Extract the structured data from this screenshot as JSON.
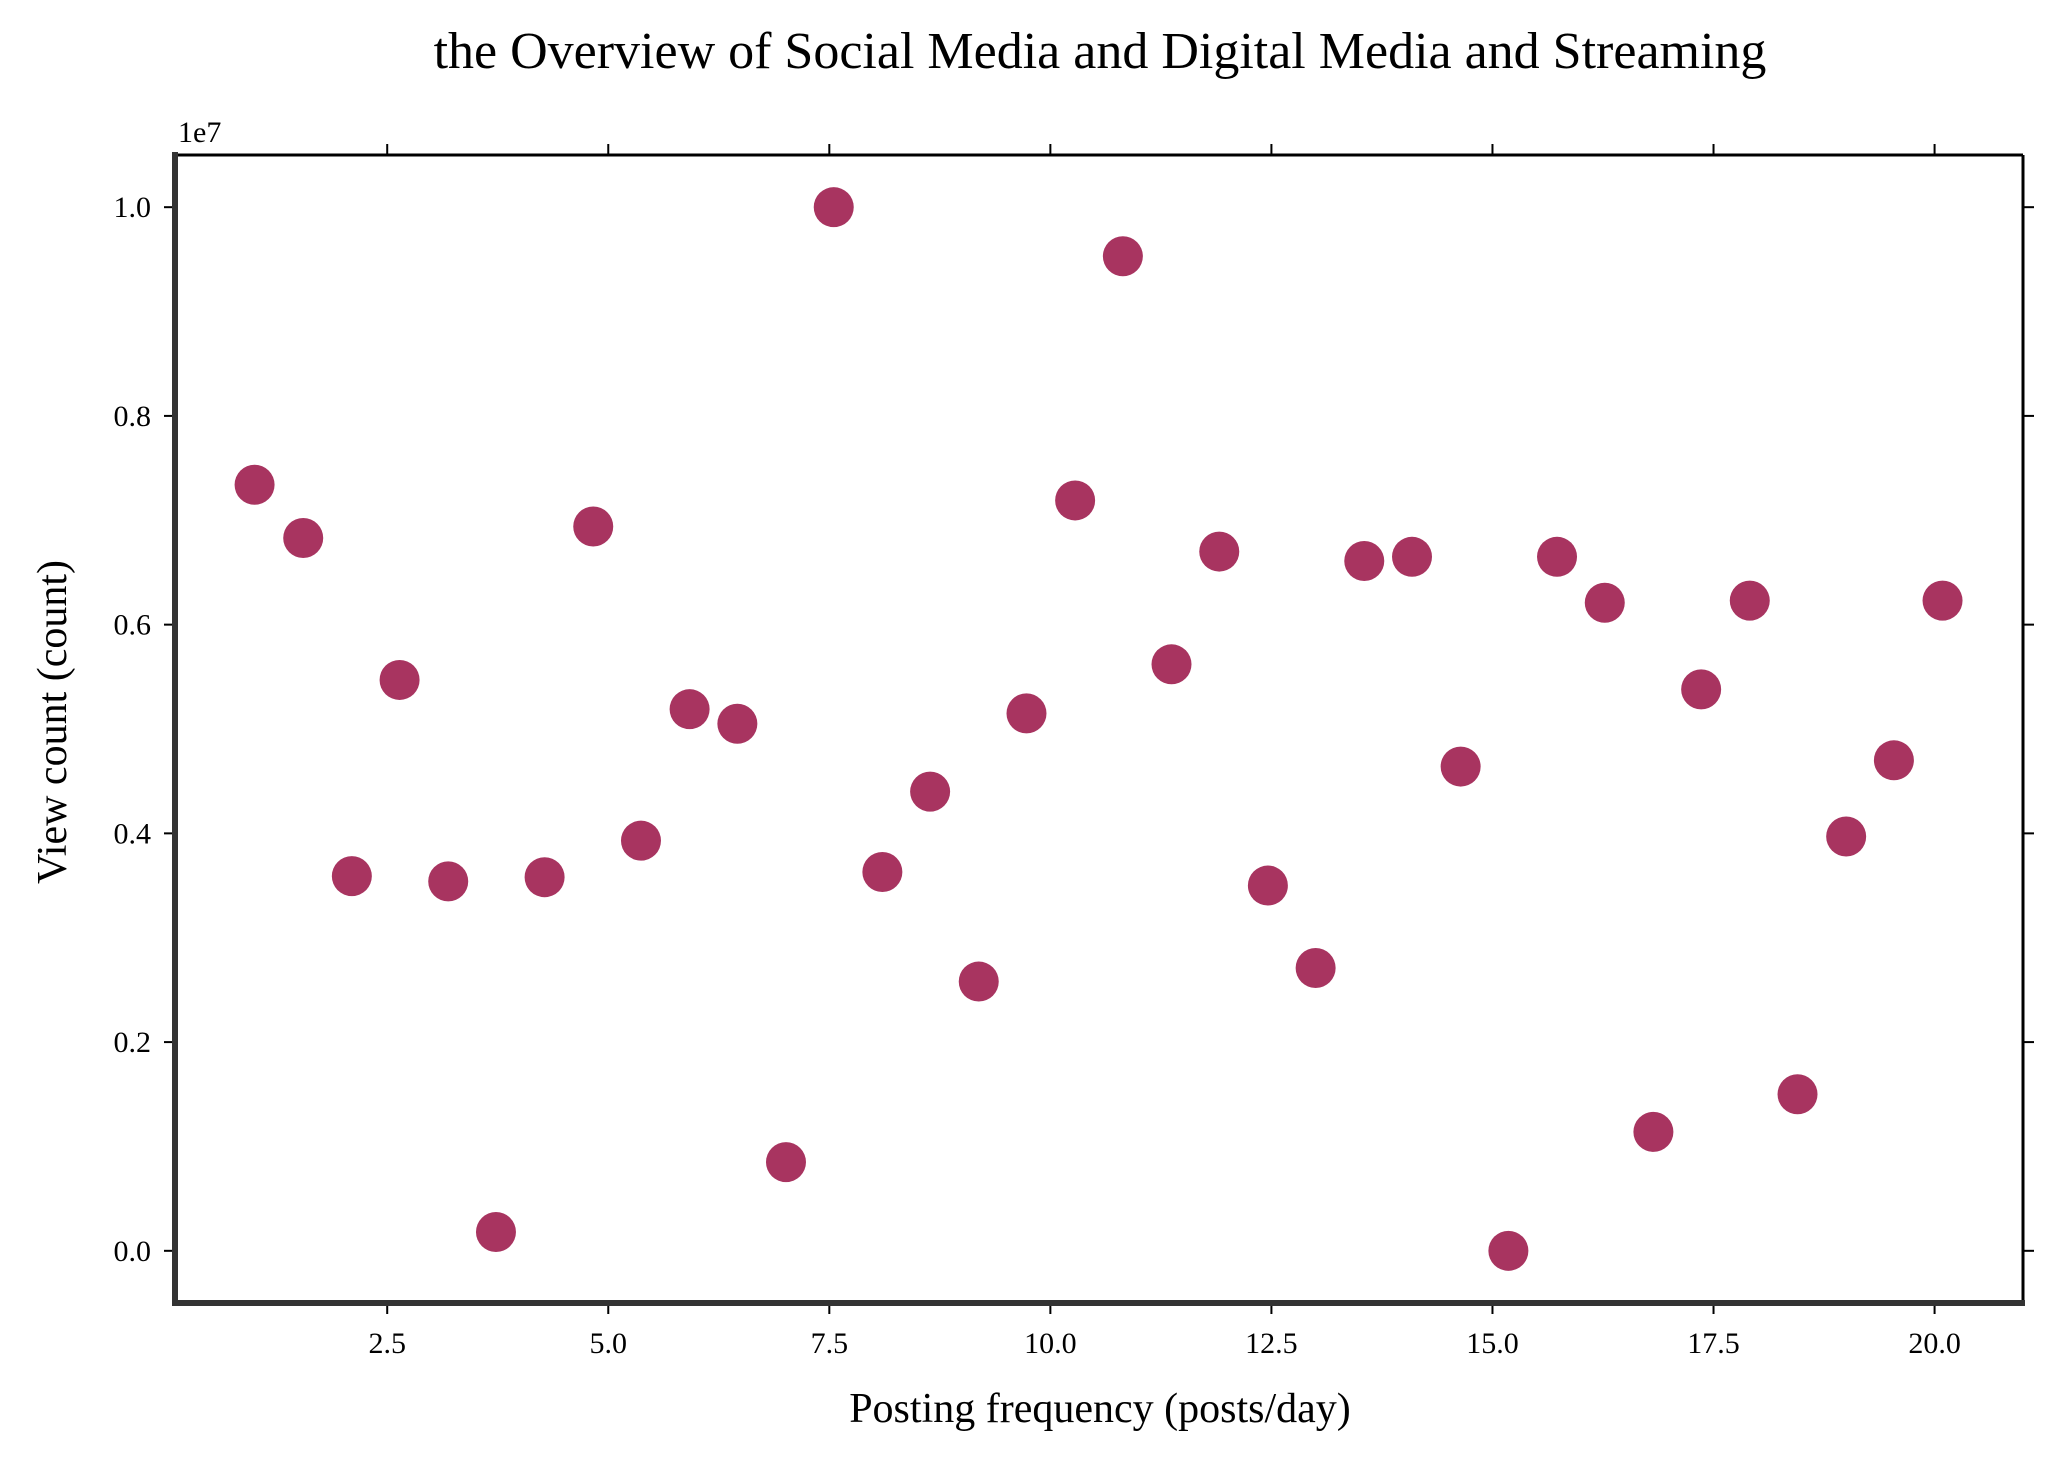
{
  "chart_data": {
    "type": "scatter",
    "title": "the Overview of Social Media and Digital Media and Streaming",
    "xlabel": "Posting frequency (posts/day)",
    "ylabel": "View count (count)",
    "y_offset_label": "1e7",
    "xlim": [
      0.1,
      21.0
    ],
    "ylim": [
      -500000,
      10500000
    ],
    "x_ticks": [
      2.5,
      5.0,
      7.5,
      10.0,
      12.5,
      15.0,
      17.5,
      20.0
    ],
    "x_tick_labels": [
      "2.5",
      "5.0",
      "7.5",
      "10.0",
      "12.5",
      "15.0",
      "17.5",
      "20.0"
    ],
    "y_ticks": [
      0,
      2000000,
      4000000,
      6000000,
      8000000,
      10000000
    ],
    "y_tick_labels": [
      "0.0",
      "0.2",
      "0.4",
      "0.6",
      "0.8",
      "1.0"
    ],
    "grid": false,
    "legend": "none",
    "marker_color": "#a83460",
    "points": [
      {
        "x": 1.0,
        "y": 7340000
      },
      {
        "x": 1.55,
        "y": 6830000
      },
      {
        "x": 2.1,
        "y": 3590000
      },
      {
        "x": 2.64,
        "y": 5470000
      },
      {
        "x": 3.19,
        "y": 3540000
      },
      {
        "x": 3.73,
        "y": 180000
      },
      {
        "x": 4.28,
        "y": 3580000
      },
      {
        "x": 4.83,
        "y": 6940000
      },
      {
        "x": 5.37,
        "y": 3930000
      },
      {
        "x": 5.92,
        "y": 5190000
      },
      {
        "x": 6.46,
        "y": 5050000
      },
      {
        "x": 7.01,
        "y": 850000
      },
      {
        "x": 7.55,
        "y": 10000000
      },
      {
        "x": 8.1,
        "y": 3630000
      },
      {
        "x": 8.64,
        "y": 4400000
      },
      {
        "x": 9.19,
        "y": 2580000
      },
      {
        "x": 9.73,
        "y": 5150000
      },
      {
        "x": 10.28,
        "y": 7190000
      },
      {
        "x": 10.82,
        "y": 9530000
      },
      {
        "x": 11.37,
        "y": 5620000
      },
      {
        "x": 11.91,
        "y": 6700000
      },
      {
        "x": 12.46,
        "y": 3500000
      },
      {
        "x": 13.0,
        "y": 2710000
      },
      {
        "x": 13.55,
        "y": 6610000
      },
      {
        "x": 14.09,
        "y": 6650000
      },
      {
        "x": 14.64,
        "y": 4640000
      },
      {
        "x": 15.18,
        "y": 0
      },
      {
        "x": 15.73,
        "y": 6650000
      },
      {
        "x": 16.27,
        "y": 6210000
      },
      {
        "x": 16.82,
        "y": 1140000
      },
      {
        "x": 17.36,
        "y": 5380000
      },
      {
        "x": 17.91,
        "y": 6230000
      },
      {
        "x": 18.45,
        "y": 1500000
      },
      {
        "x": 19.0,
        "y": 3970000
      },
      {
        "x": 19.54,
        "y": 4700000
      },
      {
        "x": 20.09,
        "y": 6230000
      }
    ]
  }
}
